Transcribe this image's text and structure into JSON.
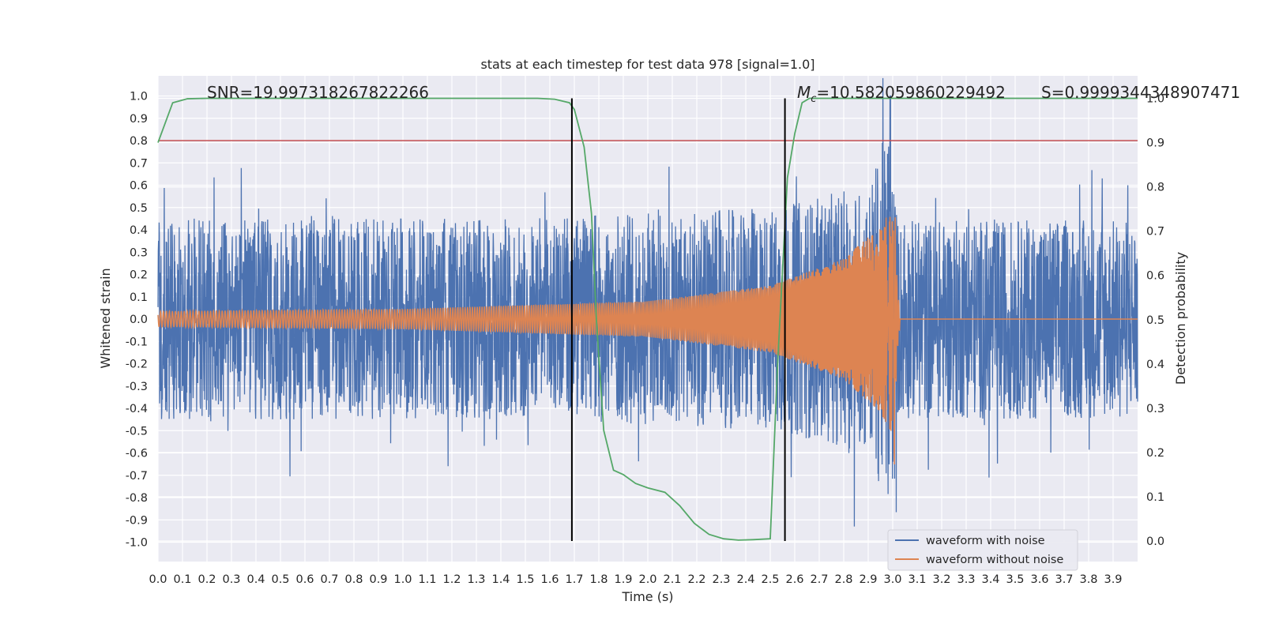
{
  "chart_data": {
    "type": "line",
    "title": "stats at each timestep for test data 978 [signal=1.0]",
    "xlabel": "Time (s)",
    "ylabel": "Whitened strain",
    "y2label": "Detection probability",
    "xlim": [
      0.0,
      4.0
    ],
    "ylim": [
      -1.1,
      1.1
    ],
    "y2lim": [
      -0.05,
      1.0
    ],
    "grid": true,
    "x_ticks": [
      "0.0",
      "0.1",
      "0.2",
      "0.3",
      "0.4",
      "0.5",
      "0.6",
      "0.7",
      "0.8",
      "0.9",
      "1.0",
      "1.1",
      "1.2",
      "1.3",
      "1.4",
      "1.5",
      "1.6",
      "1.7",
      "1.8",
      "1.9",
      "2.0",
      "2.1",
      "2.2",
      "2.3",
      "2.4",
      "2.5",
      "2.6",
      "2.7",
      "2.8",
      "2.9",
      "3.0",
      "3.1",
      "3.2",
      "3.3",
      "3.4",
      "3.5",
      "3.6",
      "3.7",
      "3.8",
      "3.9"
    ],
    "y_ticks": [
      "1.0",
      "0.9",
      "0.8",
      "0.7",
      "0.6",
      "0.5",
      "0.4",
      "0.3",
      "0.2",
      "0.1",
      "0.0",
      "-0.1",
      "-0.2",
      "-0.3",
      "-0.4",
      "-0.5",
      "-0.6",
      "-0.7",
      "-0.8",
      "-0.9",
      "-1.0"
    ],
    "y2_ticks": [
      "1.0",
      "0.9",
      "0.8",
      "0.7",
      "0.6",
      "0.5",
      "0.4",
      "0.3",
      "0.2",
      "0.1",
      "0.0"
    ],
    "annotations": {
      "snr": "SNR=19.997318267822266",
      "mc_symbol": "M",
      "mc_subscript": "c",
      "mc_value": "=10.582059860229492",
      "s": "S=0.9999344348907471"
    },
    "series": [
      {
        "name": "waveform with noise",
        "color": "#4c72b0",
        "description": "noisy whitened strain, dense oscillation roughly within -0.6..0.6 with spikes to about ±0.8, peak near t=2.99 reaching 1.0",
        "amplitude_envelope": [
          [
            0.0,
            0.45
          ],
          [
            1.5,
            0.45
          ],
          [
            2.5,
            0.5
          ],
          [
            2.9,
            0.6
          ],
          [
            2.99,
            0.9
          ],
          [
            3.02,
            0.45
          ],
          [
            4.0,
            0.45
          ]
        ]
      },
      {
        "name": "waveform without noise",
        "color": "#dd8452",
        "description": "clean chirp signal; amplitude grows from ~0.03 to ~0.5 and ends near t=3.0",
        "amplitude_envelope": [
          [
            0.0,
            0.035
          ],
          [
            1.0,
            0.045
          ],
          [
            2.0,
            0.08
          ],
          [
            2.5,
            0.15
          ],
          [
            2.8,
            0.27
          ],
          [
            2.95,
            0.42
          ],
          [
            3.0,
            0.52
          ],
          [
            3.02,
            0.0
          ],
          [
            4.0,
            0.0
          ]
        ]
      },
      {
        "name": "",
        "axis": "right",
        "color": "#55a868",
        "x": [
          0.0,
          0.06,
          0.12,
          0.2,
          0.4,
          0.8,
          1.2,
          1.55,
          1.62,
          1.68,
          1.7,
          1.74,
          1.77,
          1.79,
          1.82,
          1.86,
          1.9,
          1.95,
          2.0,
          2.07,
          2.13,
          2.19,
          2.25,
          2.31,
          2.37,
          2.43,
          2.5,
          2.53,
          2.57,
          2.6,
          2.63,
          2.66,
          2.75,
          3.0,
          3.5,
          4.0
        ],
        "values": [
          0.9,
          0.99,
          0.999,
          1.0,
          1.0,
          1.0,
          1.0,
          1.0,
          0.998,
          0.99,
          0.975,
          0.89,
          0.74,
          0.5,
          0.25,
          0.16,
          0.15,
          0.13,
          0.12,
          0.11,
          0.08,
          0.04,
          0.015,
          0.005,
          0.002,
          0.003,
          0.005,
          0.4,
          0.82,
          0.92,
          0.99,
          1.0,
          1.0,
          1.0,
          1.0,
          1.0
        ]
      },
      {
        "name": "",
        "type": "hline",
        "color": "#c44e52",
        "y": 0.8
      }
    ],
    "vlines": [
      1.69,
      2.56
    ],
    "legend": {
      "position": "bottom-right",
      "entries": [
        {
          "label": "waveform with noise",
          "color": "#4c72b0"
        },
        {
          "label": "waveform without noise",
          "color": "#dd8452"
        }
      ]
    }
  }
}
